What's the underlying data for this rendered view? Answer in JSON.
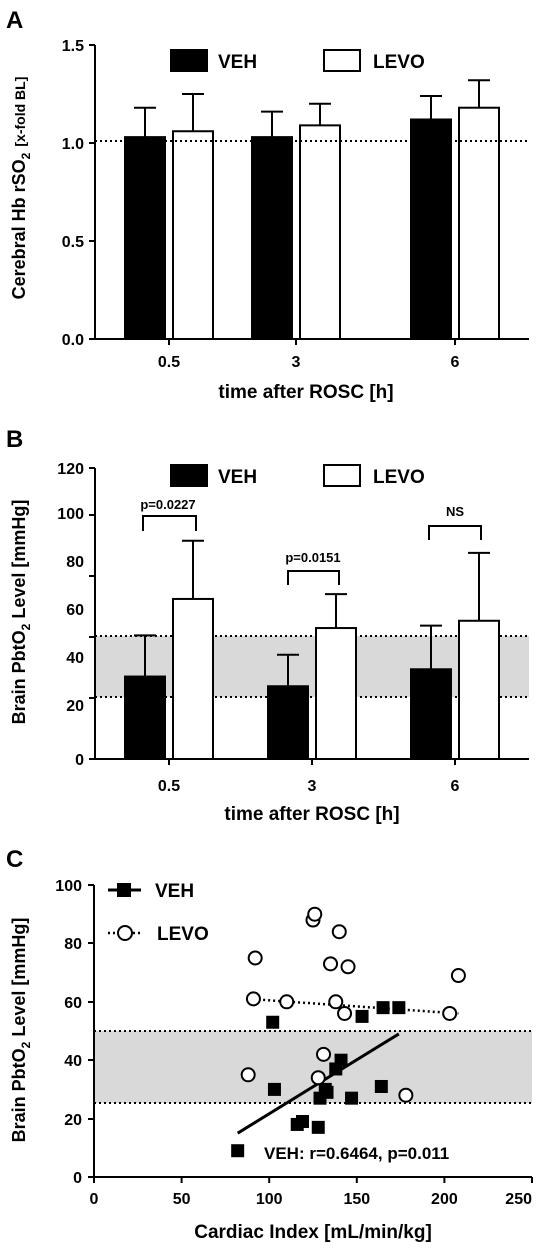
{
  "chart_data": [
    {
      "panel": "A",
      "type": "bar",
      "ylabel_main": "Cerebral Hb rSO",
      "ylabel_sub": "2",
      "ylabel_bracket": "[x-fold BL]",
      "xlabel": "time after ROSC [h]",
      "categories": [
        "0.5",
        "3",
        "6"
      ],
      "yticks": [
        "0.0",
        "0.5",
        "1.0",
        "1.5"
      ],
      "ylim": [
        0,
        1.5
      ],
      "reference_line": 1.0,
      "series": [
        {
          "name": "VEH",
          "values": [
            1.03,
            1.03,
            1.12
          ],
          "errors": [
            0.15,
            0.13,
            0.12
          ],
          "fill": "#000000"
        },
        {
          "name": "LEVO",
          "values": [
            1.06,
            1.09,
            1.18
          ],
          "errors": [
            0.19,
            0.11,
            0.14
          ],
          "fill": "#ffffff"
        }
      ]
    },
    {
      "panel": "B",
      "type": "bar",
      "ylabel_main": "Brain PbtO",
      "ylabel_sub": "2",
      "ylabel_rest": " Level [mmHg]",
      "xlabel": "time after ROSC [h]",
      "categories": [
        "0.5",
        "3",
        "6"
      ],
      "yticks": [
        "0",
        "20",
        "40",
        "60",
        "80",
        "100",
        "120"
      ],
      "ylim": [
        0,
        120
      ],
      "normal_range": [
        25,
        50
      ],
      "series": [
        {
          "name": "VEH",
          "values": [
            34,
            30,
            37
          ],
          "errors": [
            17,
            13,
            18
          ],
          "fill": "#000000"
        },
        {
          "name": "LEVO",
          "values": [
            66,
            54,
            57
          ],
          "errors": [
            24,
            14,
            28
          ],
          "fill": "#ffffff"
        }
      ],
      "annotations": [
        "p=0.0227",
        "p=0.0151",
        "NS"
      ]
    },
    {
      "panel": "C",
      "type": "scatter",
      "ylabel_main": "Brain PbtO",
      "ylabel_sub": "2",
      "ylabel_rest": " Level [mmHg]",
      "xlabel": "Cardiac Index [mL/min/kg]",
      "xticks": [
        "0",
        "50",
        "100",
        "150",
        "200",
        "250"
      ],
      "yticks": [
        "0",
        "20",
        "40",
        "60",
        "80",
        "100"
      ],
      "xlim": [
        0,
        250
      ],
      "ylim": [
        0,
        100
      ],
      "normal_range": [
        25,
        50
      ],
      "series": [
        {
          "name": "VEH",
          "marker": "square",
          "x": [
            82,
            102,
            103,
            116,
            119,
            128,
            129,
            132,
            133,
            138,
            141,
            147,
            153,
            164,
            165,
            174
          ],
          "y": [
            9,
            53,
            30,
            18,
            19,
            17,
            27,
            30,
            29,
            37,
            40,
            27,
            55,
            31,
            58,
            58
          ],
          "fit": {
            "x": [
              82,
              174
            ],
            "y": [
              15,
              49
            ]
          }
        },
        {
          "name": "LEVO",
          "marker": "circle",
          "x": [
            88,
            91,
            92,
            110,
            125,
            126,
            128,
            131,
            135,
            138,
            140,
            143,
            145,
            178,
            203,
            208
          ],
          "y": [
            35,
            61,
            75,
            60,
            88,
            90,
            34,
            42,
            73,
            60,
            84,
            56,
            72,
            28,
            56,
            69
          ],
          "fit": {
            "x": [
              88,
              208
            ],
            "y": [
              61,
              56
            ]
          }
        }
      ],
      "annotation": "VEH: r=0.6464, p=0.011"
    }
  ]
}
